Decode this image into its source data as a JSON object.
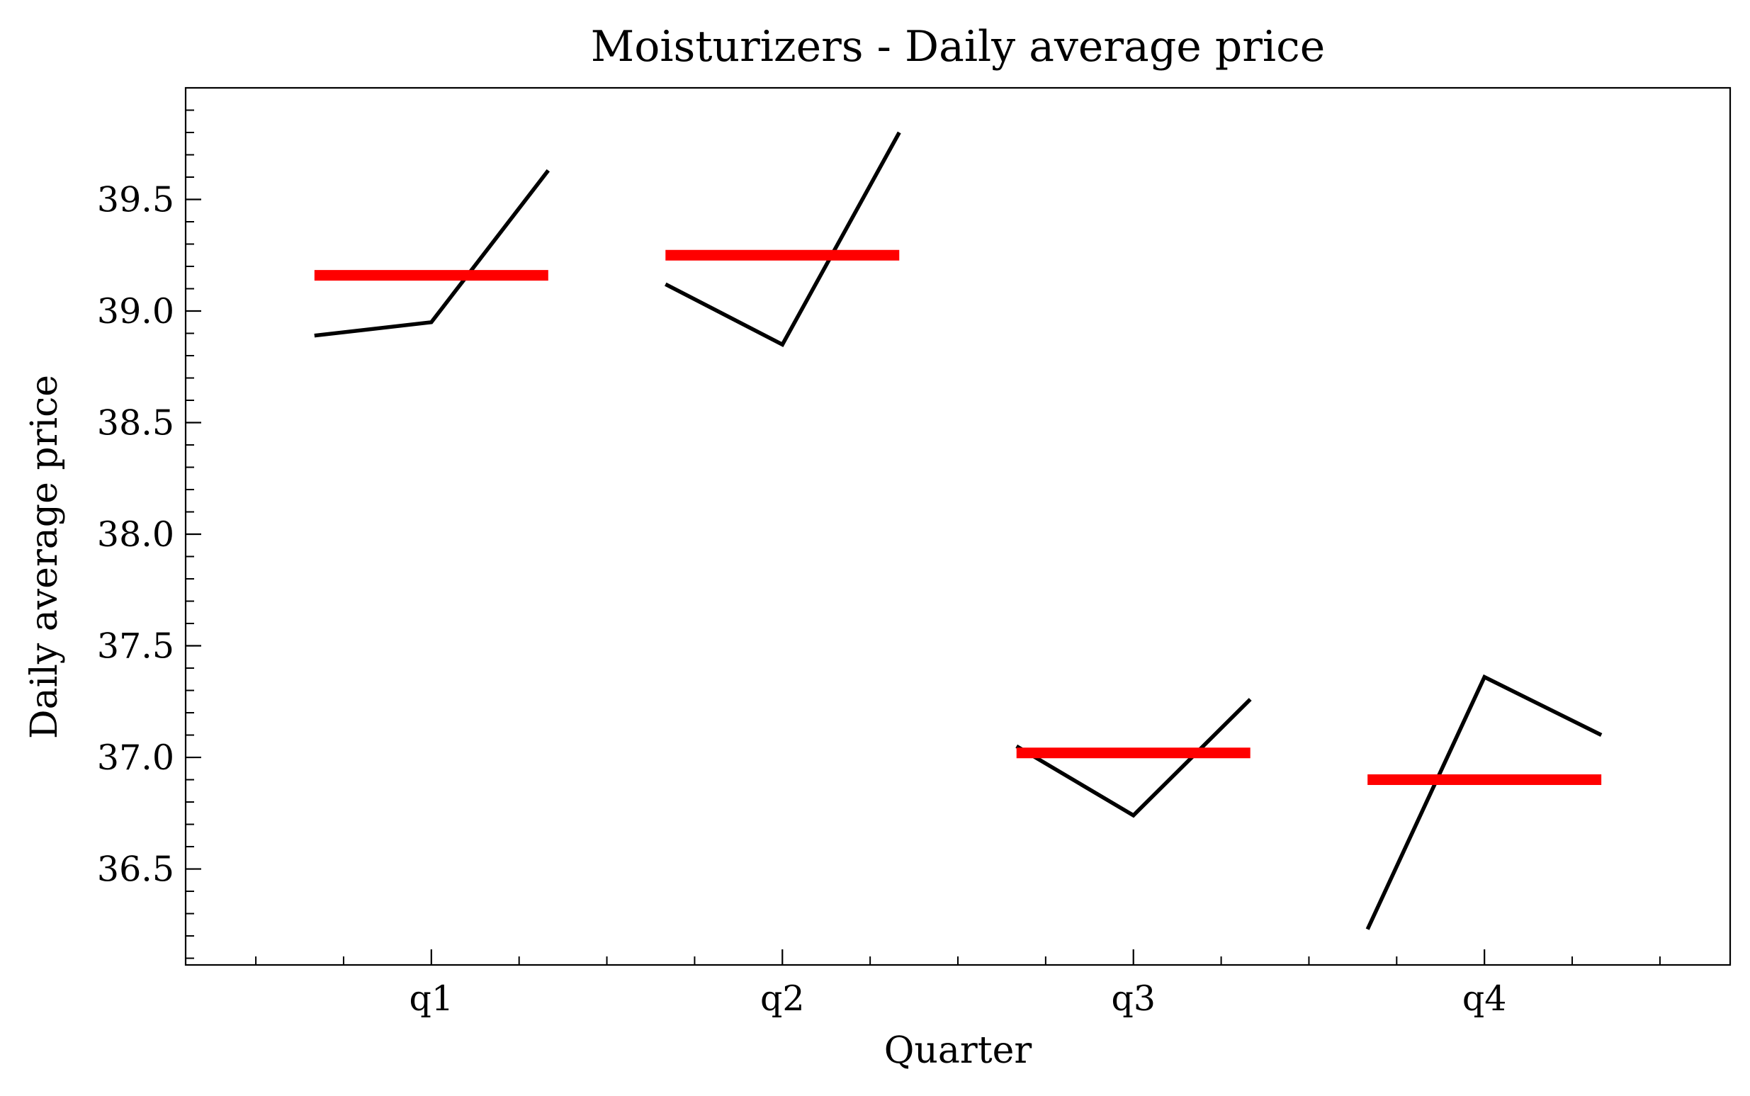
{
  "chart_data": {
    "type": "line",
    "title": "Moisturizers - Daily average price",
    "xlabel": "Quarter",
    "ylabel": "Daily average price",
    "categories": [
      "q1",
      "q2",
      "q3",
      "q4"
    ],
    "x_range": [
      -0.7,
      3.7
    ],
    "ylim": [
      36.07,
      40.0
    ],
    "y_ticks": [
      36.5,
      37.0,
      37.5,
      38.0,
      38.5,
      39.0,
      39.5
    ],
    "y_tick_labels": [
      "36.5",
      "37.0",
      "37.5",
      "38.0",
      "38.5",
      "39.0",
      "39.5"
    ],
    "y_minor_step": 0.1,
    "x_minor_step": 0.25,
    "grid": false,
    "series": [
      {
        "color": "#000000",
        "groups": [
          {
            "category": "q1",
            "points": [
              [
                -0.333,
                38.89
              ],
              [
                0.0,
                38.95
              ],
              [
                0.333,
                39.63
              ]
            ]
          },
          {
            "category": "q2",
            "points": [
              [
                -0.333,
                39.12
              ],
              [
                0.0,
                38.85
              ],
              [
                0.333,
                39.8
              ]
            ]
          },
          {
            "category": "q3",
            "points": [
              [
                -0.333,
                37.05
              ],
              [
                0.0,
                36.74
              ],
              [
                0.333,
                37.26
              ]
            ]
          },
          {
            "category": "q4",
            "points": [
              [
                -0.333,
                36.23
              ],
              [
                0.0,
                37.36
              ],
              [
                0.333,
                37.1
              ]
            ]
          }
        ]
      },
      {
        "color": "#ff0000",
        "groups": [
          {
            "category": "q1",
            "value": 39.16
          },
          {
            "category": "q2",
            "value": 39.25
          },
          {
            "category": "q3",
            "value": 37.02
          },
          {
            "category": "q4",
            "value": 36.9
          }
        ]
      }
    ]
  }
}
